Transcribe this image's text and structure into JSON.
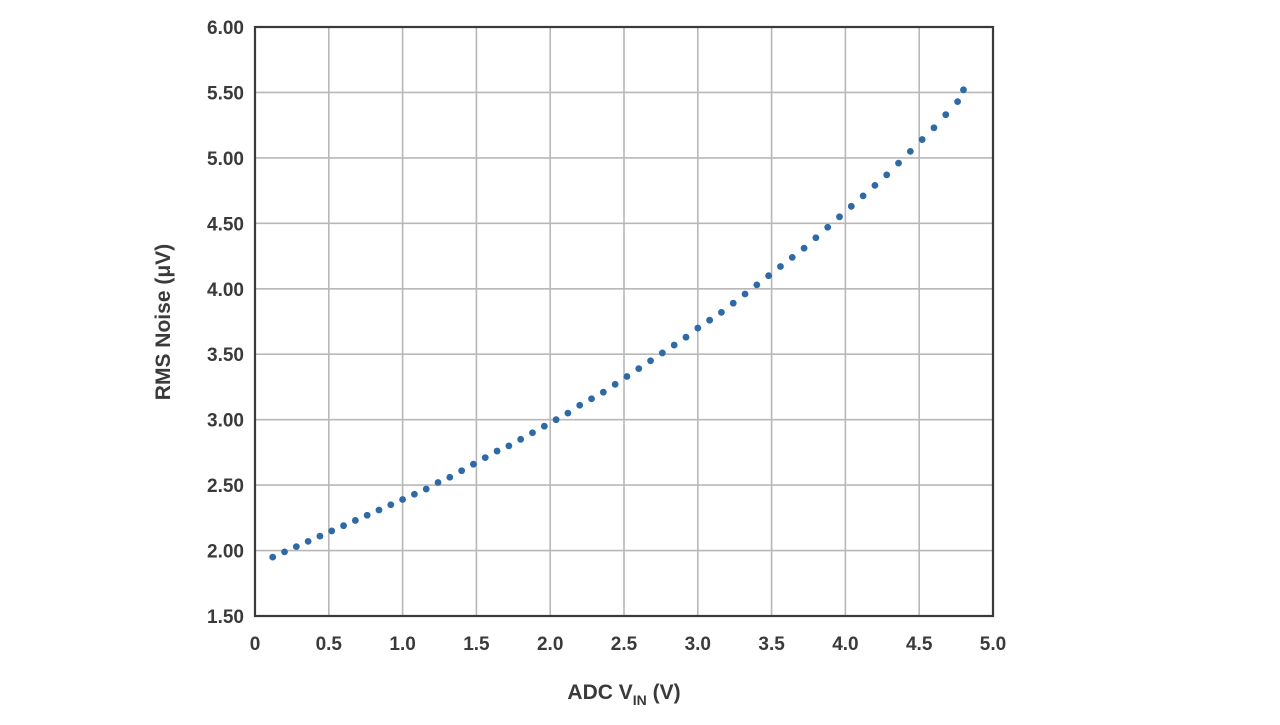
{
  "chart_data": {
    "type": "scatter",
    "title": "",
    "xlabel_parts": {
      "main": "ADC V",
      "sub": "IN",
      "unit": " (V)"
    },
    "ylabel": "RMS Noise (μV)",
    "xlim": [
      0,
      5
    ],
    "ylim": [
      1.5,
      6.0
    ],
    "xticks": [
      "0",
      "0.5",
      "1.0",
      "1.5",
      "2.0",
      "2.5",
      "3.0",
      "3.5",
      "4.0",
      "4.5",
      "5.0"
    ],
    "yticks": [
      "1.50",
      "2.00",
      "2.50",
      "3.00",
      "3.50",
      "4.00",
      "4.50",
      "5.00",
      "5.50",
      "6.00"
    ],
    "grid": true,
    "marker_color": "#2e6aa6",
    "series": [
      {
        "x": [
          0.12,
          0.2,
          0.28,
          0.36,
          0.44,
          0.52,
          0.6,
          0.68,
          0.76,
          0.84,
          0.92,
          1.0,
          1.08,
          1.16,
          1.24,
          1.32,
          1.4,
          1.48,
          1.56,
          1.64,
          1.72,
          1.8,
          1.88,
          1.96,
          2.04,
          2.12,
          2.2,
          2.28,
          2.36,
          2.44,
          2.52,
          2.6,
          2.68,
          2.76,
          2.84,
          2.92,
          3.0,
          3.08,
          3.16,
          3.24,
          3.32,
          3.4,
          3.48,
          3.56,
          3.64,
          3.72,
          3.8,
          3.88,
          3.96,
          4.04,
          4.12,
          4.2,
          4.28,
          4.36,
          4.44,
          4.52,
          4.6,
          4.68,
          4.76,
          4.8
        ],
        "y": [
          1.95,
          1.99,
          2.03,
          2.07,
          2.11,
          2.15,
          2.19,
          2.23,
          2.27,
          2.31,
          2.35,
          2.39,
          2.43,
          2.47,
          2.52,
          2.56,
          2.61,
          2.66,
          2.71,
          2.76,
          2.8,
          2.85,
          2.9,
          2.95,
          3.0,
          3.05,
          3.11,
          3.16,
          3.21,
          3.27,
          3.33,
          3.39,
          3.45,
          3.51,
          3.57,
          3.63,
          3.7,
          3.76,
          3.82,
          3.89,
          3.96,
          4.03,
          4.1,
          4.17,
          4.24,
          4.31,
          4.39,
          4.47,
          4.55,
          4.63,
          4.71,
          4.79,
          4.87,
          4.96,
          5.05,
          5.14,
          5.23,
          5.33,
          5.43,
          5.52
        ]
      }
    ]
  }
}
